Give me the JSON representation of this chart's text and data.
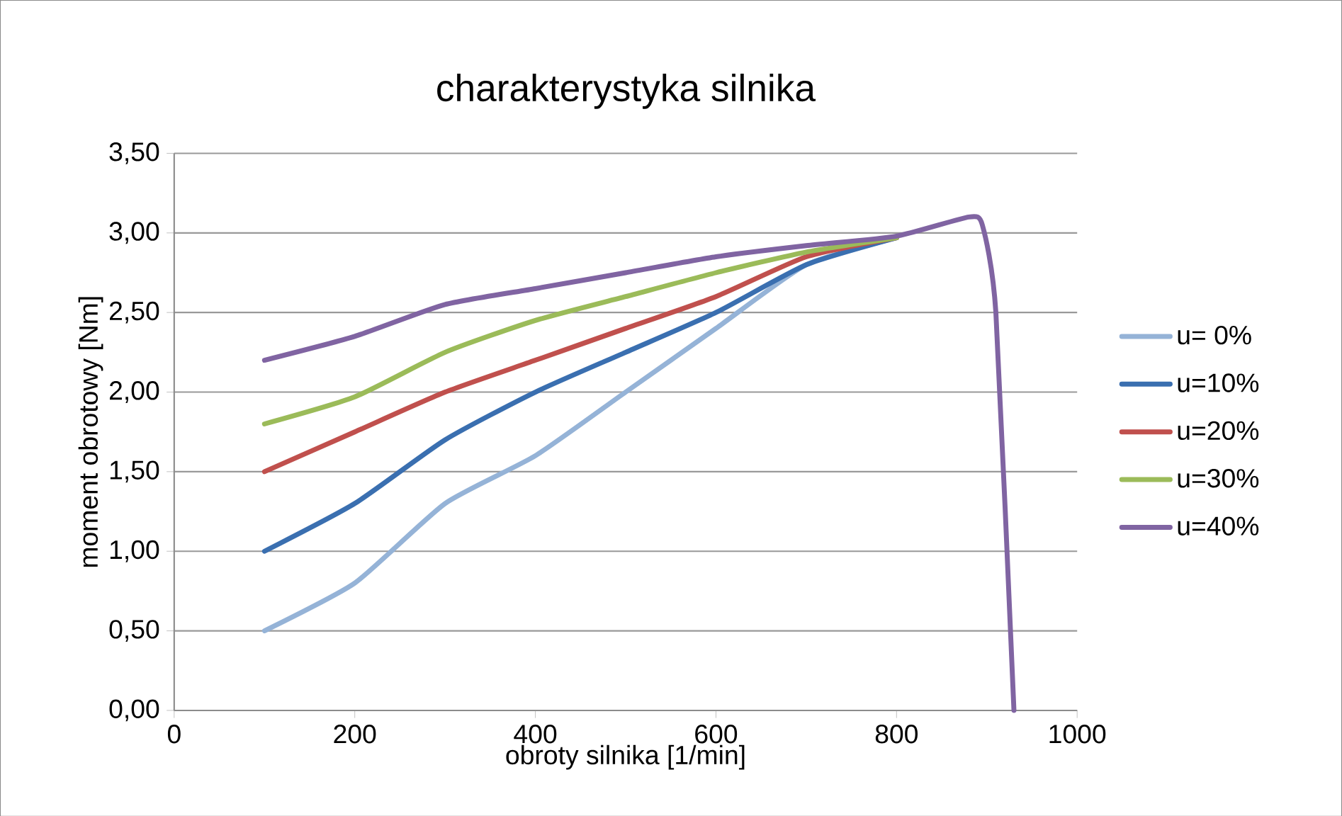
{
  "chart_data": {
    "type": "line",
    "title": "charakterystyka silnika",
    "xlabel": "obroty silnika [1/min]",
    "ylabel": "moment obrotowy [Nm]",
    "xlim": [
      0,
      1000
    ],
    "xticks": [
      0,
      200,
      400,
      600,
      800,
      1000
    ],
    "ylim": [
      0,
      3.5
    ],
    "yticks": [
      {
        "value": 0,
        "label": "0,00"
      },
      {
        "value": 0.5,
        "label": "0,50"
      },
      {
        "value": 1,
        "label": "1,00"
      },
      {
        "value": 1.5,
        "label": "1,50"
      },
      {
        "value": 2,
        "label": "2,00"
      },
      {
        "value": 2.5,
        "label": "2,50"
      },
      {
        "value": 3,
        "label": "3,00"
      },
      {
        "value": 3.5,
        "label": "3,50"
      }
    ],
    "grid": "y",
    "legend": "right",
    "marker": "none",
    "line_style": "solid",
    "x": [
      100,
      200,
      300,
      400,
      500,
      600,
      700,
      800
    ],
    "series": [
      {
        "name": "u= 0%",
        "color": "#95b3d7",
        "values": [
          0.5,
          0.8,
          1.3,
          1.6,
          2.0,
          2.4,
          2.8,
          2.97
        ]
      },
      {
        "name": "u=10%",
        "color": "#3a6fb0",
        "values": [
          1.0,
          1.3,
          1.7,
          2.0,
          2.25,
          2.5,
          2.8,
          2.97
        ]
      },
      {
        "name": "u=20%",
        "color": "#c0504d",
        "values": [
          1.5,
          1.75,
          2.0,
          2.2,
          2.4,
          2.6,
          2.85,
          2.97
        ]
      },
      {
        "name": "u=30%",
        "color": "#9bbb59",
        "values": [
          1.8,
          1.97,
          2.25,
          2.45,
          2.6,
          2.75,
          2.88,
          2.97
        ]
      },
      {
        "name": "u=40%",
        "color": "#8064a2",
        "x": [
          100,
          200,
          300,
          400,
          500,
          600,
          700,
          800,
          880,
          895,
          910,
          930
        ],
        "values": [
          2.2,
          2.35,
          2.55,
          2.65,
          2.75,
          2.85,
          2.92,
          2.98,
          3.1,
          3.05,
          2.5,
          0
        ]
      }
    ]
  }
}
